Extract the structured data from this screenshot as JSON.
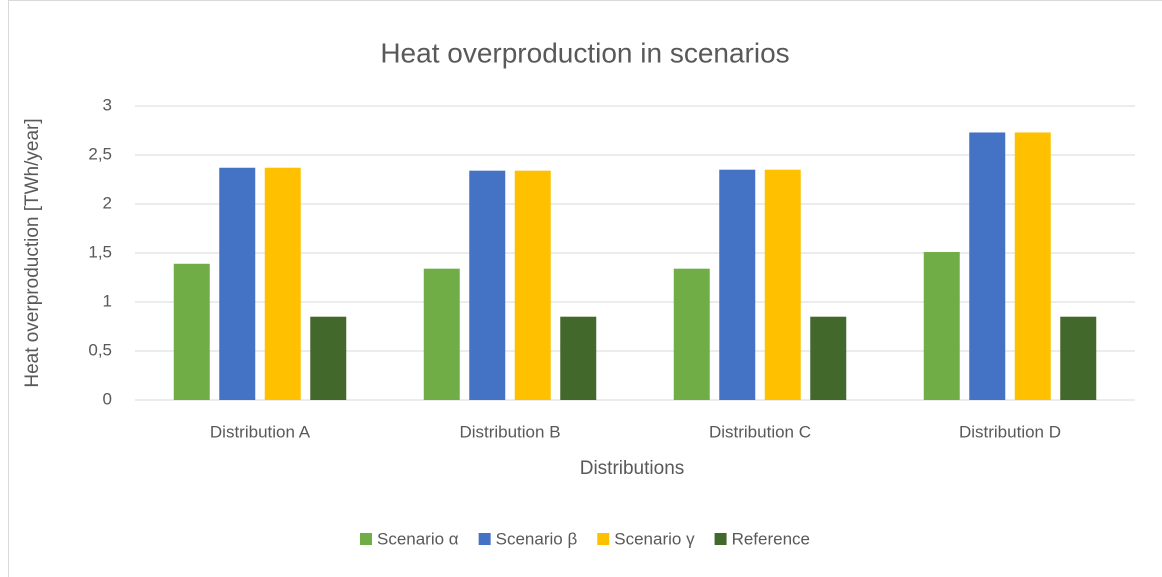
{
  "chart_data": {
    "type": "bar",
    "title": "Heat overproduction in scenarios",
    "x_label": "Distributions",
    "y_label": "Heat overproduction [TWh/year]",
    "categories": [
      "Distribution A",
      "Distribution B",
      "Distribution C",
      "Distribution D"
    ],
    "series": [
      {
        "name": "Scenario α",
        "color": "#70ad47",
        "values": [
          1.39,
          1.34,
          1.34,
          1.51
        ]
      },
      {
        "name": "Scenario β",
        "color": "#4472c4",
        "values": [
          2.37,
          2.34,
          2.35,
          2.73
        ]
      },
      {
        "name": "Scenario γ",
        "color": "#ffc000",
        "values": [
          2.37,
          2.34,
          2.35,
          2.73
        ]
      },
      {
        "name": "Reference",
        "color": "#43682b",
        "values": [
          0.85,
          0.85,
          0.85,
          0.85
        ]
      }
    ],
    "ylim": [
      0,
      3
    ],
    "yticks": [
      0,
      {
        "value": 0.5,
        "label": "0,5"
      },
      1,
      {
        "value": 1.5,
        "label": "1,5"
      },
      2,
      {
        "value": 2.5,
        "label": "2,5"
      },
      3
    ],
    "grid": true,
    "legend": "bottom"
  }
}
